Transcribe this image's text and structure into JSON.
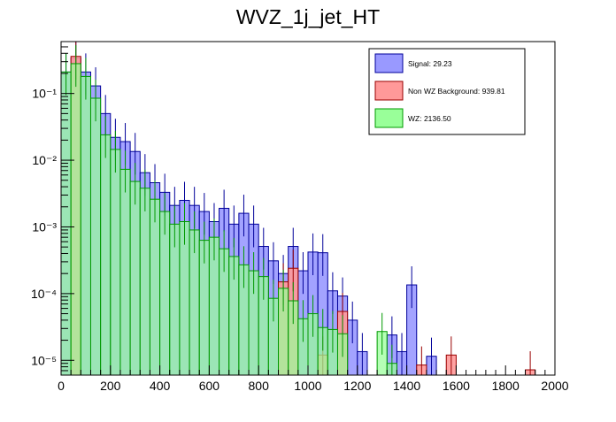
{
  "chart_data": {
    "type": "bar",
    "title": "WVZ_1j_jet_HT",
    "xlabel": "",
    "ylabel": "",
    "xlim": [
      0,
      2000
    ],
    "ylim": [
      6e-06,
      0.6
    ],
    "log_y": true,
    "grid": false,
    "legend_position": "top-right",
    "bin_width": 40,
    "x_ticks": [
      0,
      200,
      400,
      600,
      800,
      1000,
      1200,
      1400,
      1600,
      1800,
      2000
    ],
    "x_tick_labels": [
      "0",
      "200",
      "400",
      "600",
      "800",
      "1000",
      "1200",
      "1400",
      "1600",
      "1800",
      "2000"
    ],
    "y_ticks": [
      1e-05,
      0.0001,
      0.001,
      0.01,
      0.1
    ],
    "y_tick_labels": [
      "10⁻⁵",
      "10⁻⁴",
      "10⁻³",
      "10⁻²",
      "10⁻¹"
    ],
    "series": [
      {
        "name": "Signal: 29.23",
        "color": "#9999ff",
        "edge": "#000099",
        "bins": [
          [
            0,
            0.21
          ],
          [
            40,
            0.34
          ],
          [
            80,
            0.21
          ],
          [
            120,
            0.13
          ],
          [
            160,
            0.05
          ],
          [
            200,
            0.022
          ],
          [
            240,
            0.019
          ],
          [
            280,
            0.0135
          ],
          [
            320,
            0.0065
          ],
          [
            360,
            0.0046
          ],
          [
            400,
            0.0033
          ],
          [
            440,
            0.0021
          ],
          [
            480,
            0.0025
          ],
          [
            520,
            0.0021
          ],
          [
            560,
            0.0017
          ],
          [
            600,
            0.0012
          ],
          [
            640,
            0.0019
          ],
          [
            680,
            0.0011
          ],
          [
            720,
            0.0016
          ],
          [
            760,
            0.0011
          ],
          [
            800,
            0.00051
          ],
          [
            840,
            0.00031
          ],
          [
            880,
            0.0002
          ],
          [
            920,
            0.00051
          ],
          [
            960,
            0.00022
          ],
          [
            1000,
            0.00042
          ],
          [
            1040,
            0.00041
          ],
          [
            1080,
            0.00011
          ],
          [
            1120,
            9.2e-05
          ],
          [
            1160,
            4e-05
          ],
          [
            1200,
            1.35e-05
          ],
          [
            1320,
            2.4e-05
          ],
          [
            1360,
            1.35e-05
          ],
          [
            1400,
            0.000135
          ],
          [
            1480,
            1.15e-05
          ]
        ]
      },
      {
        "name": "Non WZ Background: 939.81",
        "color": "#ff9999",
        "edge": "#990000",
        "bins": [
          [
            40,
            0.36
          ],
          [
            880,
            0.00015
          ],
          [
            920,
            0.00024
          ],
          [
            1040,
            1.2e-05
          ],
          [
            1120,
            5.4e-05
          ],
          [
            1440,
            8.5e-06
          ],
          [
            1560,
            1.2e-05
          ],
          [
            1880,
            7.2e-06
          ]
        ]
      },
      {
        "name": "WZ: 2136.50",
        "color": "#99ff99",
        "edge": "#009900",
        "bins": [
          [
            0,
            0.21
          ],
          [
            40,
            0.28
          ],
          [
            80,
            0.18
          ],
          [
            120,
            0.085
          ],
          [
            160,
            0.024
          ],
          [
            200,
            0.0145
          ],
          [
            240,
            0.0073
          ],
          [
            280,
            0.0048
          ],
          [
            320,
            0.0038
          ],
          [
            360,
            0.0026
          ],
          [
            400,
            0.0017
          ],
          [
            440,
            0.0011
          ],
          [
            480,
            0.0012
          ],
          [
            520,
            0.0009
          ],
          [
            560,
            0.00063
          ],
          [
            600,
            0.0007
          ],
          [
            640,
            0.00047
          ],
          [
            680,
            0.00036
          ],
          [
            720,
            0.00027
          ],
          [
            760,
            0.00022
          ],
          [
            800,
            0.00018
          ],
          [
            840,
            8.5e-05
          ],
          [
            880,
            0.00012
          ],
          [
            920,
            7.8e-05
          ],
          [
            960,
            4.2e-05
          ],
          [
            1000,
            5e-05
          ],
          [
            1040,
            3.1e-05
          ],
          [
            1080,
            2.9e-05
          ],
          [
            1120,
            2.5e-05
          ],
          [
            1280,
            2.7e-05
          ],
          [
            1320,
            9e-06
          ]
        ]
      }
    ],
    "legend": {
      "entries": [
        "Signal: 29.23",
        "Non WZ Background: 939.81",
        "WZ: 2136.50"
      ]
    }
  }
}
